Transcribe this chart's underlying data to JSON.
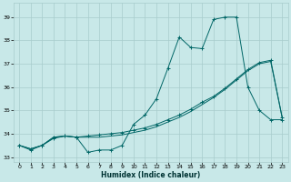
{
  "xlabel": "Humidex (Indice chaleur)",
  "background_color": "#c8e8e8",
  "grid_color": "#a8cccc",
  "line_color": "#006666",
  "xlim": [
    -0.5,
    23.5
  ],
  "ylim": [
    32.8,
    39.6
  ],
  "yticks": [
    33,
    34,
    35,
    36,
    37,
    38,
    39
  ],
  "xticks": [
    0,
    1,
    2,
    3,
    4,
    5,
    6,
    7,
    8,
    9,
    10,
    11,
    12,
    13,
    14,
    15,
    16,
    17,
    18,
    19,
    20,
    21,
    22,
    23
  ],
  "series1_y": [
    33.5,
    33.3,
    33.5,
    33.8,
    33.9,
    33.85,
    33.2,
    33.3,
    33.3,
    33.5,
    34.4,
    34.8,
    35.5,
    36.8,
    38.15,
    37.7,
    37.65,
    38.9,
    39.0,
    39.0,
    36.0,
    35.0,
    34.6,
    34.6
  ],
  "series3_y": [
    33.5,
    33.35,
    33.5,
    33.85,
    33.9,
    33.85,
    33.85,
    33.85,
    33.9,
    33.95,
    34.05,
    34.15,
    34.3,
    34.5,
    34.7,
    34.95,
    35.25,
    35.55,
    35.9,
    36.3,
    36.7,
    37.0,
    37.1,
    34.7
  ],
  "series4_y": [
    33.5,
    33.35,
    33.5,
    33.85,
    33.9,
    33.85,
    33.9,
    33.95,
    34.0,
    34.05,
    34.15,
    34.25,
    34.4,
    34.6,
    34.8,
    35.05,
    35.35,
    35.6,
    35.95,
    36.35,
    36.75,
    37.05,
    37.15,
    34.7
  ]
}
